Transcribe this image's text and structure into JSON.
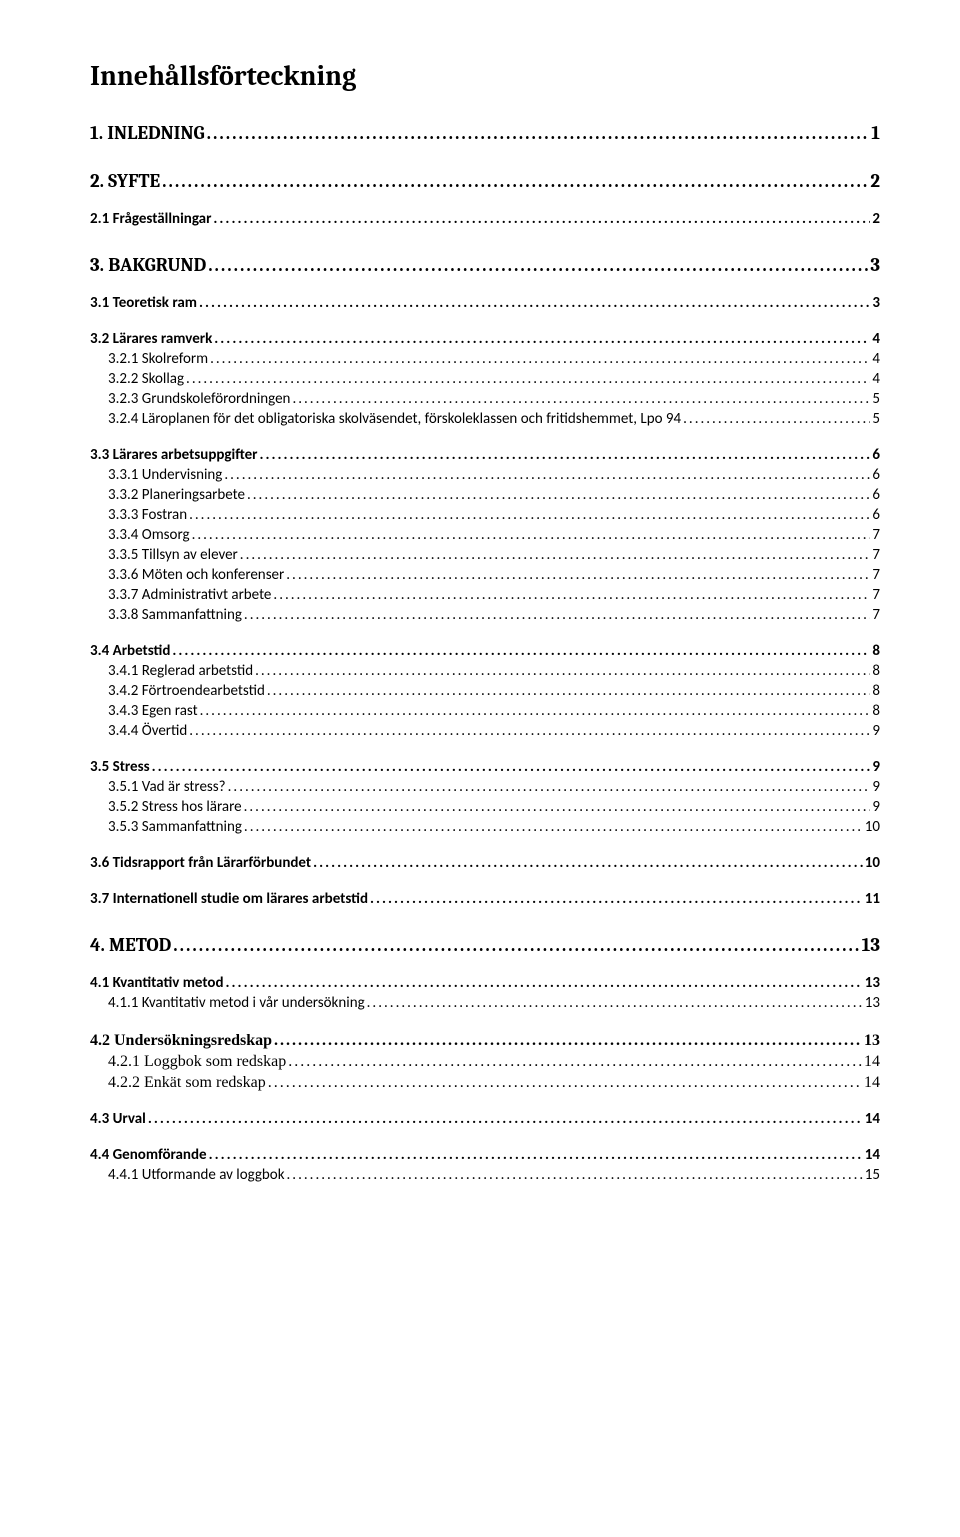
{
  "title": "Innehållsförteckning",
  "entries": [
    {
      "level": "level1",
      "label": "1. INLEDNING",
      "page": "1"
    },
    {
      "level": "level1",
      "label": "2. SYFTE",
      "page": "2"
    },
    {
      "level": "level2",
      "label": "2.1 Frågeställningar",
      "page": "2"
    },
    {
      "level": "level1",
      "label": "3. BAKGRUND",
      "page": "3"
    },
    {
      "level": "level2",
      "label": "3.1 Teoretisk ram",
      "page": "3"
    },
    {
      "level": "level2",
      "label": "3.2 Lärares ramverk",
      "page": "4"
    },
    {
      "level": "level3",
      "label": "3.2.1 Skolreform",
      "page": "4"
    },
    {
      "level": "level3",
      "label": "3.2.2 Skollag",
      "page": "4"
    },
    {
      "level": "level3",
      "label": "3.2.3 Grundskoleförordningen",
      "page": "5"
    },
    {
      "level": "level3",
      "label": "3.2.4 Läroplanen för det obligatoriska skolväsendet, förskoleklassen och fritidshemmet, Lpo 94",
      "page": "5"
    },
    {
      "level": "level2",
      "label": "3.3 Lärares arbetsuppgifter",
      "page": "6"
    },
    {
      "level": "level3",
      "label": "3.3.1 Undervisning",
      "page": "6"
    },
    {
      "level": "level3",
      "label": "3.3.2 Planeringsarbete",
      "page": "6"
    },
    {
      "level": "level3",
      "label": "3.3.3 Fostran",
      "page": "6"
    },
    {
      "level": "level3",
      "label": "3.3.4 Omsorg",
      "page": "7"
    },
    {
      "level": "level3",
      "label": "3.3.5 Tillsyn av elever",
      "page": "7"
    },
    {
      "level": "level3",
      "label": "3.3.6 Möten och konferenser",
      "page": "7"
    },
    {
      "level": "level3",
      "label": "3.3.7 Administrativt arbete",
      "page": "7"
    },
    {
      "level": "level3",
      "label": "3.3.8 Sammanfattning",
      "page": "7"
    },
    {
      "level": "level2",
      "label": "3.4 Arbetstid",
      "page": "8"
    },
    {
      "level": "level3",
      "label": "3.4.1 Reglerad arbetstid",
      "page": "8"
    },
    {
      "level": "level3",
      "label": "3.4.2 Förtroendearbetstid",
      "page": "8"
    },
    {
      "level": "level3",
      "label": "3.4.3 Egen rast",
      "page": "8"
    },
    {
      "level": "level3",
      "label": "3.4.4 Övertid",
      "page": "9"
    },
    {
      "level": "level2",
      "label": "3.5 Stress",
      "page": "9"
    },
    {
      "level": "level3",
      "label": "3.5.1 Vad är stress?",
      "page": "9"
    },
    {
      "level": "level3",
      "label": "3.5.2 Stress hos lärare",
      "page": "9"
    },
    {
      "level": "level3",
      "label": "3.5.3 Sammanfattning",
      "page": "10"
    },
    {
      "level": "level2",
      "label": "3.6 Tidsrapport från Lärarförbundet",
      "page": "10"
    },
    {
      "level": "level2",
      "label": "3.7 Internationell studie om lärares arbetstid",
      "page": "11"
    },
    {
      "level": "level1",
      "label": "4. METOD",
      "page": "13"
    },
    {
      "level": "level2",
      "label": "4.1 Kvantitativ metod",
      "page": "13"
    },
    {
      "level": "level3",
      "label": "4.1.1 Kvantitativ metod i vår undersökning",
      "page": "13"
    },
    {
      "level": "level2-serif",
      "label": "4.2 Undersökningsredskap",
      "page": "13"
    },
    {
      "level": "level3-serif",
      "label": "4.2.1 Loggbok som redskap",
      "page": "14"
    },
    {
      "level": "level3-serif",
      "label": "4.2.2 Enkät som redskap",
      "page": "14"
    },
    {
      "level": "level2",
      "label": "4.3 Urval",
      "page": "14"
    },
    {
      "level": "level2",
      "label": "4.4 Genomförande",
      "page": "14"
    },
    {
      "level": "level3",
      "label": "4.4.1 Utformande av loggbok",
      "page": "15"
    }
  ]
}
